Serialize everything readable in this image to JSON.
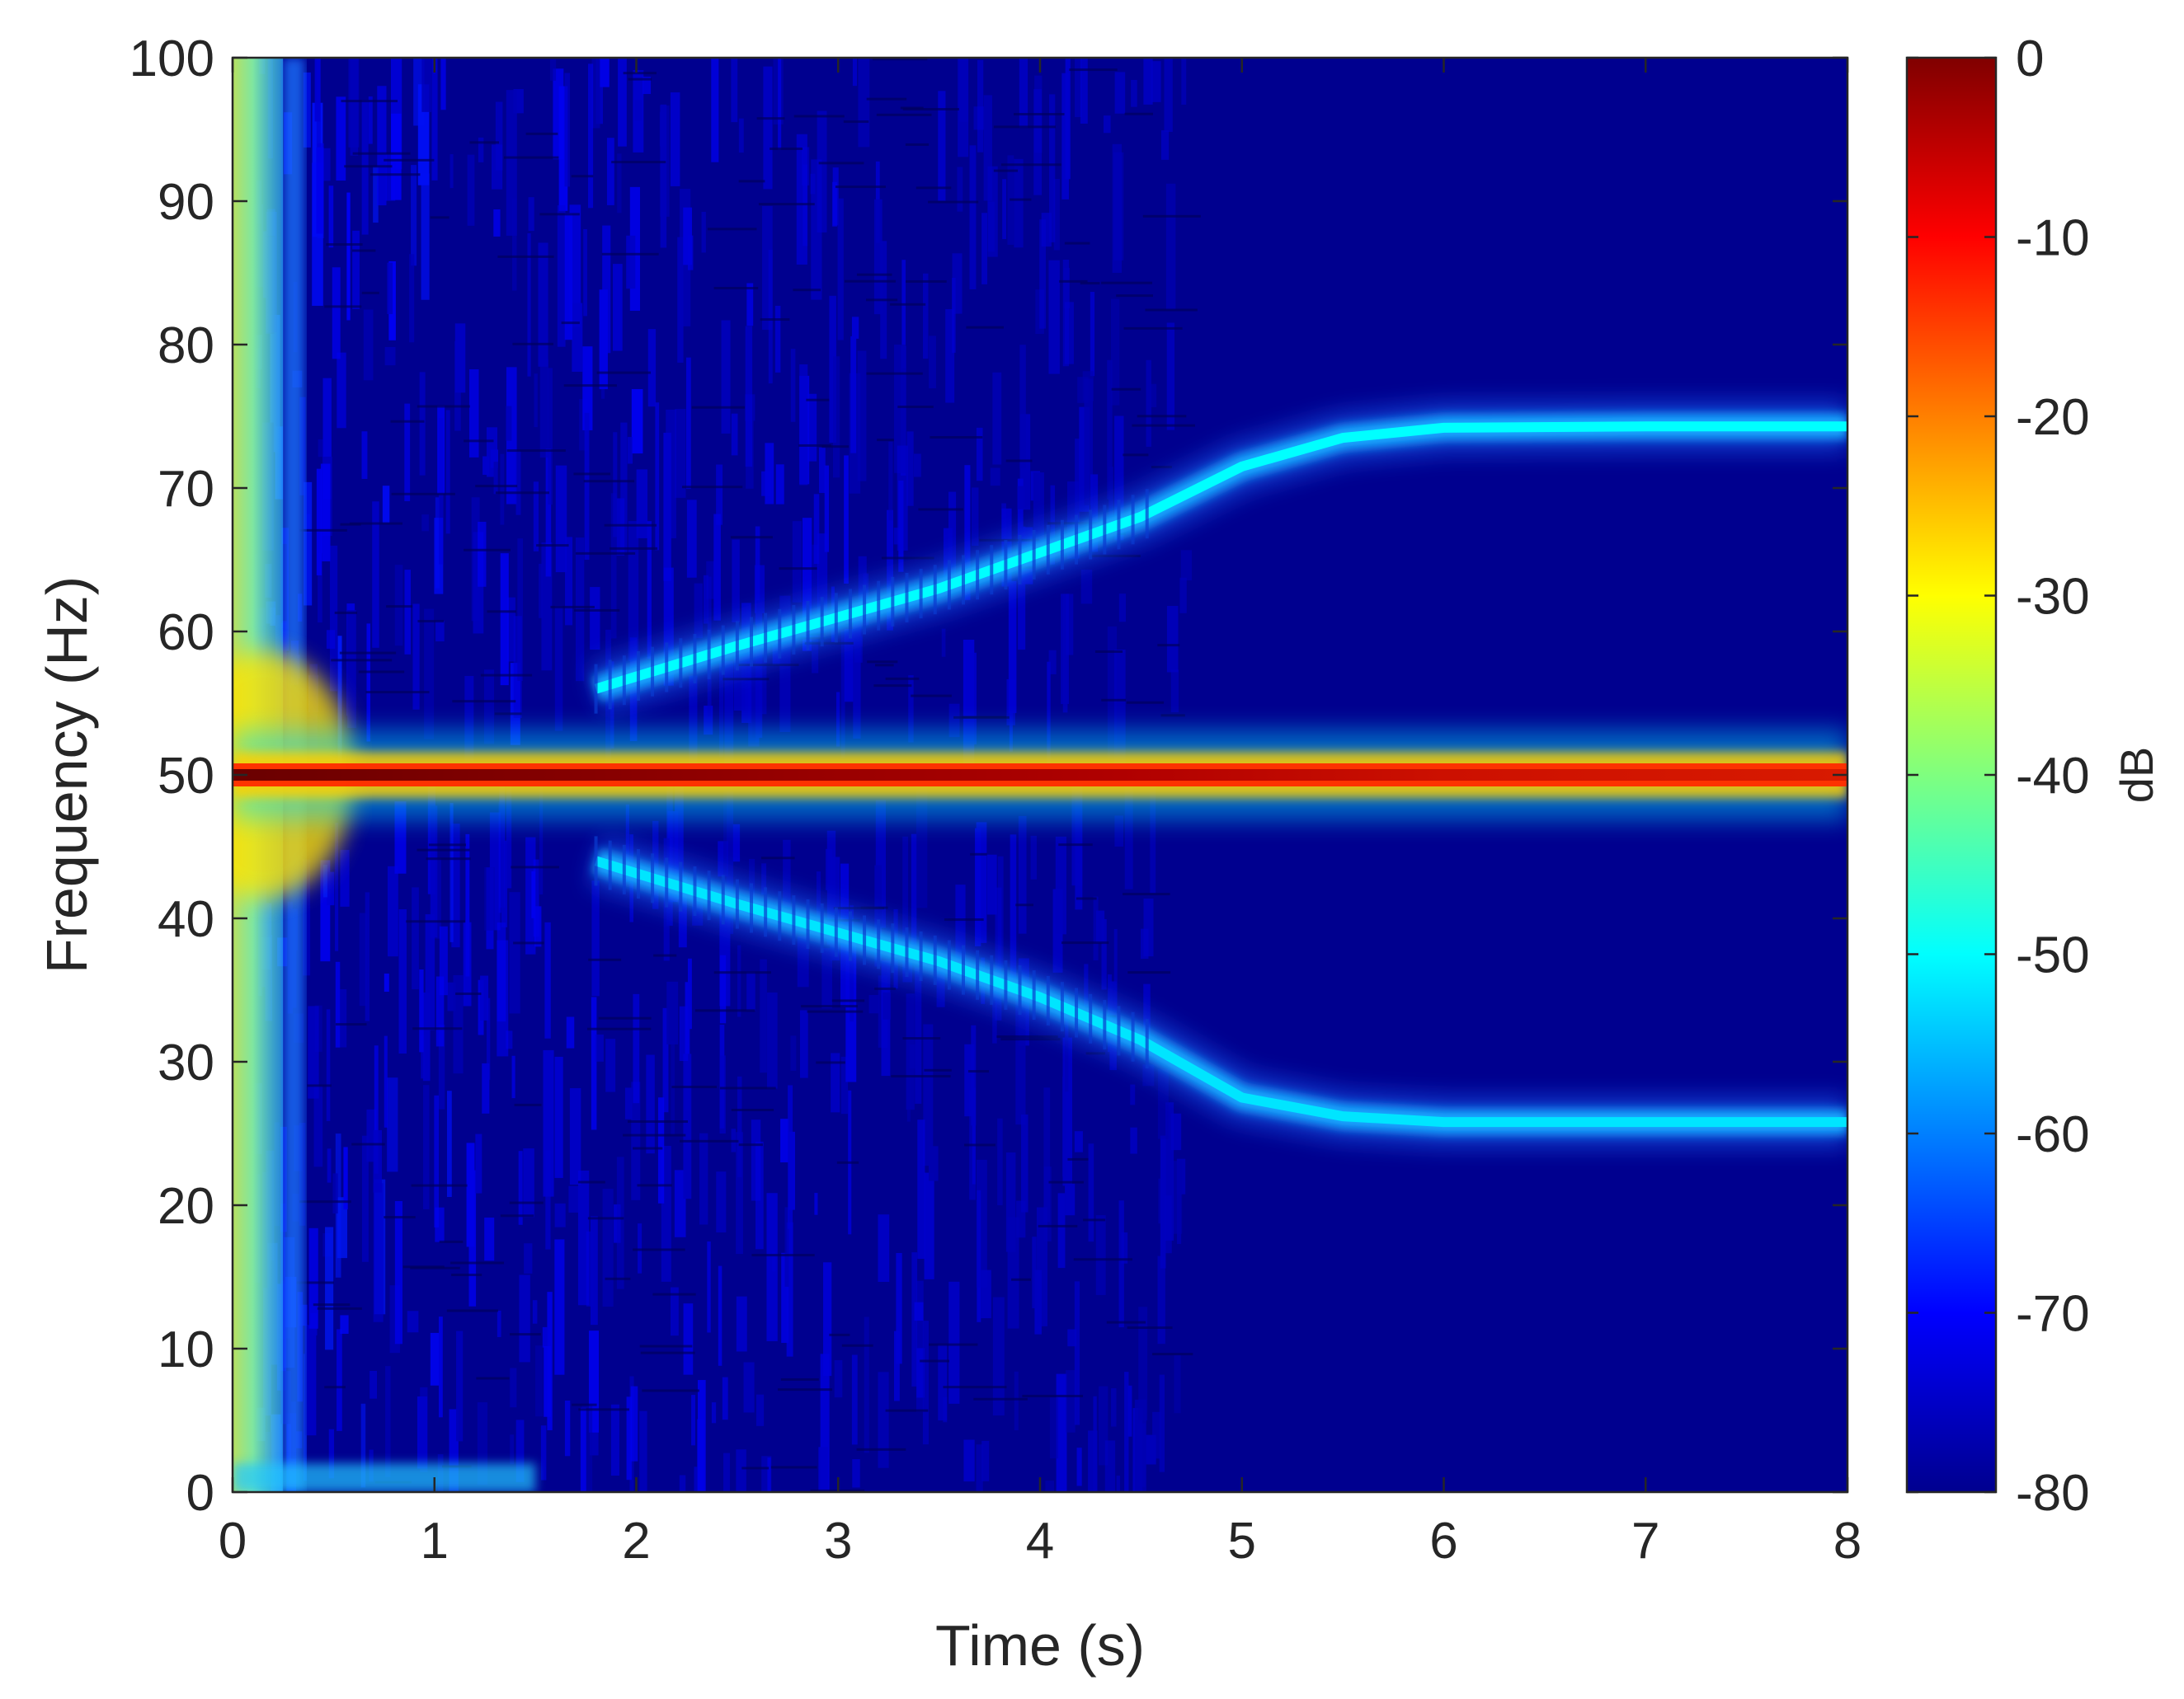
{
  "chart_data": {
    "type": "heatmap",
    "subtype": "spectrogram",
    "title": "",
    "xlabel": "Time (s)",
    "ylabel": "Frequency (Hz)",
    "xlim": [
      0,
      8
    ],
    "ylim": [
      0,
      100
    ],
    "x_ticks": [
      "0",
      "1",
      "2",
      "3",
      "4",
      "5",
      "6",
      "7",
      "8"
    ],
    "y_ticks": [
      "0",
      "10",
      "20",
      "30",
      "40",
      "50",
      "60",
      "70",
      "80",
      "90",
      "100"
    ],
    "colorbar": {
      "label": "dB",
      "colormap": "jet",
      "range": [
        -80,
        0
      ],
      "ticks": [
        "0",
        "-10",
        "-20",
        "-30",
        "-40",
        "-50",
        "-60",
        "-70",
        "-80"
      ]
    },
    "background_level_db": -80,
    "components": [
      {
        "name": "fundamental",
        "time_s": [
          0,
          1,
          2,
          3,
          4,
          5,
          6,
          7,
          8
        ],
        "freq_hz": [
          50,
          50,
          50,
          50,
          50,
          50,
          50,
          50,
          50
        ],
        "level_db": [
          0,
          -3,
          -5,
          -5,
          -4,
          -3,
          -8,
          -12,
          -12
        ]
      },
      {
        "name": "upper-sideband",
        "time_s": [
          1.8,
          2.5,
          3.0,
          3.5,
          4.0,
          4.5,
          5.0,
          5.5,
          6.0,
          7.0,
          8.0
        ],
        "freq_hz": [
          56,
          59,
          61,
          63,
          65.5,
          68,
          71.5,
          73.5,
          74.2,
          74.3,
          74.3
        ],
        "level_db": [
          -62,
          -60,
          -58,
          -57,
          -57,
          -55,
          -52,
          -50,
          -50,
          -50,
          -50
        ]
      },
      {
        "name": "lower-sideband",
        "time_s": [
          1.8,
          2.5,
          3.0,
          3.5,
          4.0,
          4.5,
          5.0,
          5.5,
          6.0,
          7.0,
          8.0
        ],
        "freq_hz": [
          44,
          41,
          39,
          37,
          34.5,
          31.5,
          27.5,
          26.2,
          25.8,
          25.8,
          25.8
        ],
        "level_db": [
          -62,
          -60,
          -58,
          -57,
          -57,
          -55,
          -52,
          -52,
          -52,
          -52,
          -52
        ]
      }
    ],
    "transient": {
      "time_range_s": [
        0,
        0.25
      ],
      "freq_range_hz": [
        0,
        100
      ],
      "level_db": -40
    }
  }
}
